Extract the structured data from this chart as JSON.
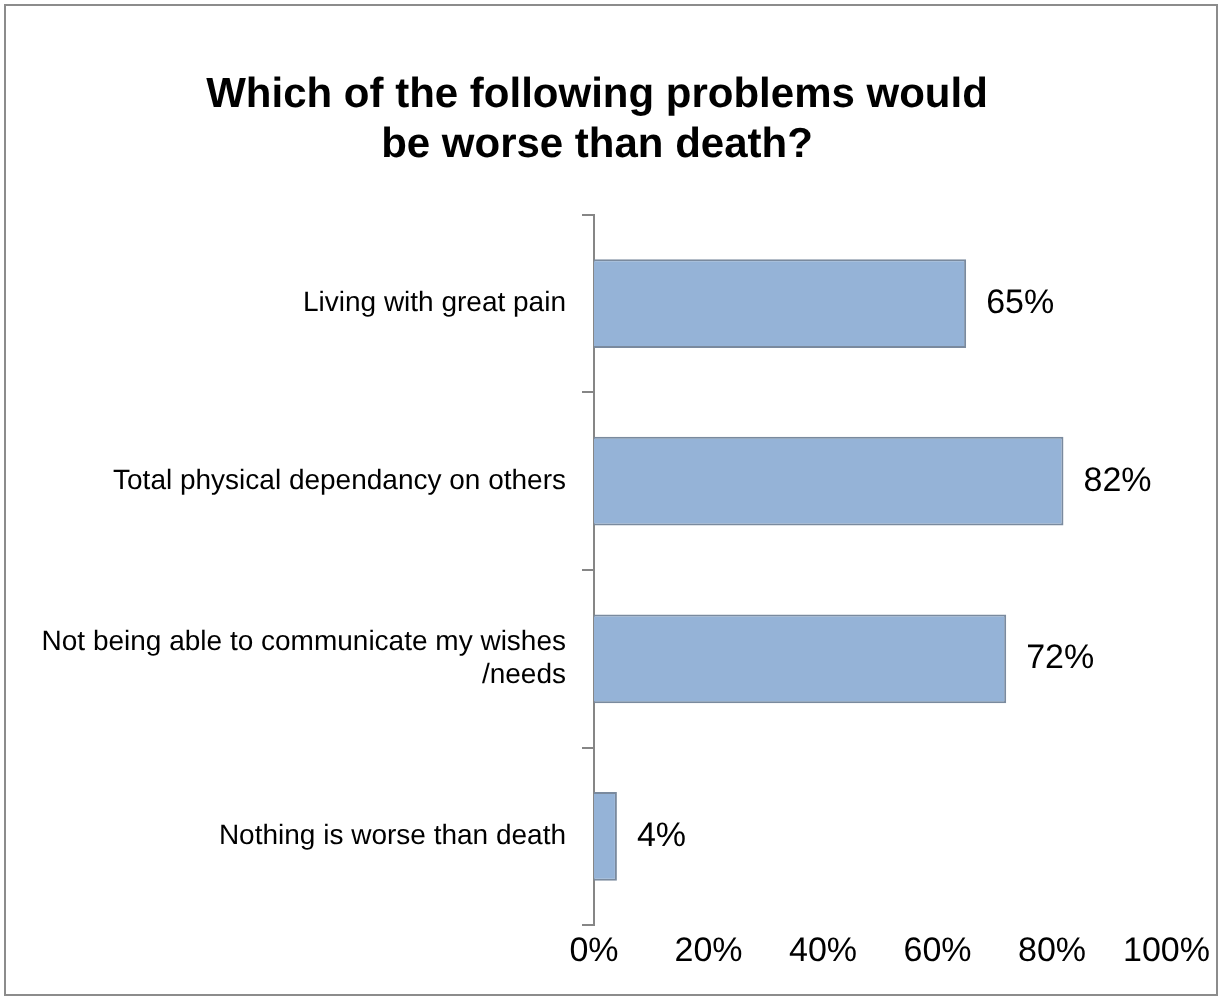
{
  "chart_data": {
    "type": "bar",
    "orientation": "horizontal",
    "title": "Which of the following problems would be worse than death?",
    "categories": [
      "Living with great pain",
      "Total physical dependancy on others",
      "Not being able to communicate my wishes /needs",
      "Nothing is worse than death"
    ],
    "values": [
      65,
      82,
      72,
      4
    ],
    "value_labels": [
      "65%",
      "82%",
      "72%",
      "4%"
    ],
    "color": "#95b3d7",
    "xlim": [
      0,
      100
    ],
    "xticks": [
      {
        "value": 0,
        "label": "0%"
      },
      {
        "value": 20,
        "label": "20%"
      },
      {
        "value": 40,
        "label": "40%"
      },
      {
        "value": 60,
        "label": "60%"
      },
      {
        "value": 80,
        "label": "80%"
      },
      {
        "value": 100,
        "label": "100%"
      }
    ],
    "grid": false,
    "legend": false
  }
}
